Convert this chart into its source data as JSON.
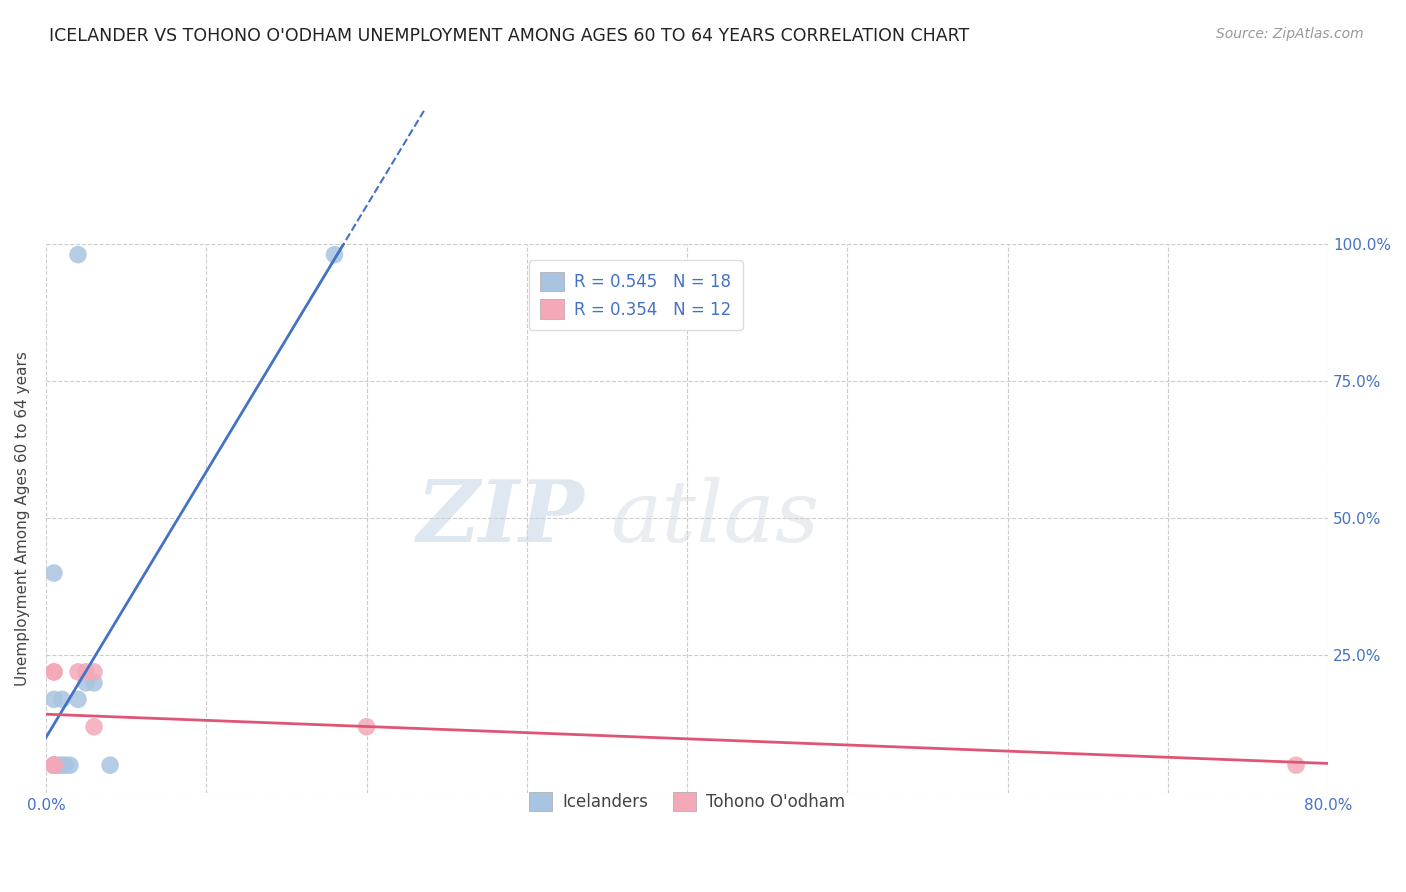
{
  "title": "ICELANDER VS TOHONO O'ODHAM UNEMPLOYMENT AMONG AGES 60 TO 64 YEARS CORRELATION CHART",
  "source": "Source: ZipAtlas.com",
  "ylabel": "Unemployment Among Ages 60 to 64 years",
  "xlim": [
    0.0,
    0.8
  ],
  "ylim": [
    0.0,
    1.0
  ],
  "xticks": [
    0.0,
    0.1,
    0.2,
    0.3,
    0.4,
    0.5,
    0.6,
    0.7,
    0.8
  ],
  "yticks": [
    0.0,
    0.25,
    0.5,
    0.75,
    1.0
  ],
  "xtick_labels": [
    "0.0%",
    "",
    "",
    "",
    "",
    "",
    "",
    "",
    "80.0%"
  ],
  "ytick_labels_left": [
    "",
    "",
    "",
    "",
    ""
  ],
  "ytick_labels_right": [
    "",
    "25.0%",
    "50.0%",
    "75.0%",
    "100.0%"
  ],
  "icelanders_x": [
    0.02,
    0.18,
    0.005,
    0.005,
    0.005,
    0.01,
    0.01,
    0.015,
    0.02,
    0.025,
    0.03,
    0.04,
    0.005,
    0.005,
    0.005,
    0.005,
    0.008,
    0.012
  ],
  "icelanders_y": [
    0.98,
    0.98,
    0.4,
    0.17,
    0.05,
    0.17,
    0.05,
    0.05,
    0.17,
    0.2,
    0.2,
    0.05,
    0.05,
    0.05,
    0.05,
    0.05,
    0.05,
    0.05
  ],
  "tohono_x": [
    0.005,
    0.005,
    0.005,
    0.005,
    0.02,
    0.025,
    0.03,
    0.03,
    0.2,
    0.005,
    0.78,
    0.005
  ],
  "tohono_y": [
    0.22,
    0.22,
    0.05,
    0.05,
    0.22,
    0.22,
    0.22,
    0.12,
    0.12,
    0.05,
    0.05,
    0.05
  ],
  "blue_dot_color": "#a8c4e0",
  "pink_dot_color": "#f4a8b8",
  "blue_line_color": "#4472c4",
  "pink_line_color": "#e05575",
  "R_blue": 0.545,
  "N_blue": 18,
  "R_pink": 0.354,
  "N_pink": 12,
  "watermark_zip": "ZIP",
  "watermark_atlas": "atlas",
  "title_fontsize": 12.5,
  "axis_label_fontsize": 11,
  "tick_fontsize": 11,
  "legend_fontsize": 12
}
